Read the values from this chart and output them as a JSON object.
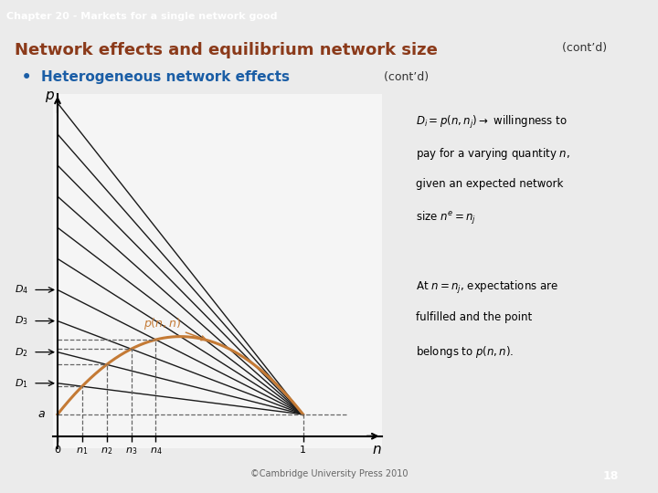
{
  "header_text": "Chapter 20 - Markets for a single network good",
  "header_bg": "#8B3A1A",
  "header_fg": "#FFFFFF",
  "title_main": "Network effects and equilibrium network size",
  "title_contd": " (cont’d)",
  "title_color": "#8B3A1A",
  "bullet_text": "Heterogeneous network effects",
  "bullet_color": "#1B5EA6",
  "bullet_contd": " (cont’d)",
  "bg_color": "#EBEBEB",
  "plot_bg": "#F5F5F5",
  "box1_bg": "#BFE0EC",
  "box2_bg": "#BFE0EC",
  "box1_line1": "$D_i = p(n,n_j) \\rightarrow$ willingness to",
  "box1_line2": "pay for a varying quantity $n$,",
  "box1_line3": "given an expected network",
  "box1_line4": "size $n^e = n_j$",
  "box2_line1": "At $n = n_j$, expectations are",
  "box2_line2": "fulfilled and the point",
  "box2_line3": "belongs to $p(n,n)$.",
  "curve_color": "#C47A35",
  "demand_color": "#1A1A1A",
  "dashed_color": "#666666",
  "n_values": [
    0.1,
    0.2,
    0.3,
    0.4,
    0.5,
    0.6,
    0.7,
    0.8,
    0.9,
    1.0
  ],
  "n1": 0.1,
  "n2": 0.2,
  "n3": 0.3,
  "n4": 0.4,
  "a_level": 0.07,
  "copyright_text": "©Cambridge University Press 2010",
  "page_num": "18",
  "page_bg": "#8B3A1A",
  "page_fg": "#FFFFFF",
  "d_labels": [
    "$D_4$",
    "$D_3$",
    "$D_2$",
    "$D_1$"
  ],
  "d_n_vals": [
    0.4,
    0.3,
    0.2,
    0.1
  ]
}
